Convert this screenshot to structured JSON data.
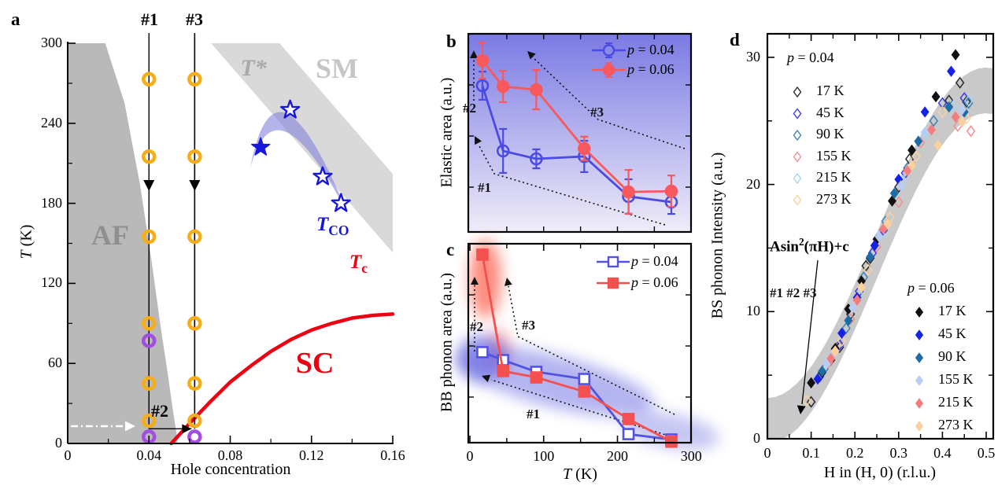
{
  "chart_data": {
    "a": {
      "type": "scatter",
      "panel_label": "a",
      "xlabel": "Hole concentration",
      "ylabel_var": "T",
      "ylabel_rest": " (K)",
      "xlim": [
        0,
        0.16
      ],
      "ylim": [
        0,
        300
      ],
      "x_ticks": [
        0,
        0.04,
        0.08,
        0.12,
        0.16
      ],
      "x_tick_labels": [
        "0",
        "0.04",
        "0.08",
        "0.12",
        "0.16"
      ],
      "x_minor": [
        0.02,
        0.06,
        0.1,
        0.14
      ],
      "y_ticks": [
        0,
        60,
        120,
        180,
        240,
        300
      ],
      "y_tick_labels": [
        "0",
        "60",
        "120",
        "180",
        "240",
        "300"
      ],
      "y_minor": [
        30,
        90,
        150,
        210,
        270
      ],
      "regions": {
        "af": "AF",
        "sm": "SM",
        "tstar": "T*",
        "sc": "SC"
      },
      "labels": {
        "tc_main": "T",
        "tc_sub": "c",
        "tco_main": "T",
        "tco_sub": "CO",
        "line1": "#1",
        "line2": "#2",
        "line3": "#3"
      },
      "colors": {
        "af": "#b9b9b9",
        "tstar_band": "#d9d9d9",
        "sm_text": "#c6c6c6",
        "af_text": "#8f8f8f",
        "tstar_text": "#a9a9a9",
        "red": "#ee0011",
        "blue": "#1616dd",
        "tco_band": "#8080dd",
        "yellow": "#f5ae19",
        "purple": "#a24ddf"
      },
      "sample_lines": {
        "line1_x": 0.04,
        "line3_x": 0.0625,
        "line2_T": 11
      },
      "yellow_circle_temps": [
        273,
        215,
        155,
        90,
        45,
        17
      ],
      "purple_circles": [
        [
          0.04,
          77
        ],
        [
          0.04,
          5
        ],
        [
          0.0625,
          5
        ]
      ],
      "stars_filled": [
        [
          0.095,
          222
        ]
      ],
      "stars_open": [
        [
          0.1095,
          250
        ],
        [
          0.1255,
          200
        ],
        [
          0.1345,
          180
        ]
      ],
      "tc_curve": [
        [
          0.051,
          0
        ],
        [
          0.06,
          15
        ],
        [
          0.07,
          31
        ],
        [
          0.08,
          46
        ],
        [
          0.09,
          58
        ],
        [
          0.1,
          69
        ],
        [
          0.11,
          78
        ],
        [
          0.12,
          85
        ],
        [
          0.13,
          90
        ],
        [
          0.14,
          94
        ],
        [
          0.15,
          96
        ],
        [
          0.16,
          97
        ]
      ],
      "af_boundary": [
        [
          0,
          300
        ],
        [
          0.0185,
          300
        ],
        [
          0.028,
          255
        ],
        [
          0.0355,
          195
        ],
        [
          0.041,
          140
        ],
        [
          0.0455,
          90
        ],
        [
          0.049,
          55
        ],
        [
          0.0515,
          28
        ],
        [
          0.0535,
          8
        ],
        [
          0.054,
          0
        ],
        [
          0,
          0
        ]
      ],
      "tstar_band": [
        [
          0.0706,
          300
        ],
        [
          0.1043,
          300
        ],
        [
          0.16,
          202
        ],
        [
          0.16,
          143
        ]
      ],
      "tco_band": {
        "tip1": [
          0.0898,
          206
        ],
        "tip2": [
          0.138,
          171.5
        ],
        "ctrl_upper": [
          0.1021,
          305.5
        ],
        "ctrl_lower": [
          0.1021,
          277.5
        ]
      }
    },
    "b": {
      "type": "line",
      "panel_label": "b",
      "ylabel": "Elastic area (a.u.)",
      "x": [
        17,
        45,
        90,
        155,
        215,
        273
      ],
      "xlim": [
        0,
        300
      ],
      "x_minor_ticks": [
        50,
        100,
        150,
        200,
        250
      ],
      "series": [
        {
          "name_var": "p",
          "name_rest": " = 0.04",
          "color": "#4a4ae4",
          "marker": "circle-open",
          "values": [
            0.738,
            0.409,
            0.369,
            0.381,
            0.179,
            0.151
          ],
          "errors": [
            0.071,
            0.111,
            0.048,
            0.079,
            0.087,
            0.06
          ]
        },
        {
          "name_var": "p",
          "name_rest": " = 0.06",
          "color": "#f8595c",
          "marker": "circle-filled",
          "values": [
            0.865,
            0.734,
            0.718,
            0.421,
            0.202,
            0.206
          ],
          "errors": [
            0.091,
            0.079,
            0.099,
            0.06,
            0.111,
            0.079
          ]
        }
      ],
      "annotations": {
        "a1": "#1",
        "a2": "#2",
        "a3": "#3"
      },
      "bg_gradient": [
        "#7a7ae4",
        "#efecf8"
      ]
    },
    "c": {
      "type": "line",
      "panel_label": "c",
      "ylabel": "BB phonon area (a.u.)",
      "xlabel_var": "T",
      "xlabel_rest": " (K)",
      "x": [
        17,
        45,
        90,
        155,
        215,
        273
      ],
      "xlim": [
        0,
        300
      ],
      "x_ticks": [
        0,
        100,
        200,
        300
      ],
      "x_tick_labels": [
        "0",
        "100",
        "200",
        "300"
      ],
      "x_minor": [
        50,
        150,
        250
      ],
      "series": [
        {
          "name_var": "p",
          "name_rest": " = 0.04",
          "color": "#5252e2",
          "marker": "square-open",
          "values": [
            0.455,
            0.415,
            0.356,
            0.32,
            0.043,
            0.016
          ]
        },
        {
          "name_var": "p",
          "name_rest": " = 0.06",
          "color": "#f4504f",
          "marker": "square-filled",
          "values": [
            0.945,
            0.36,
            0.328,
            0.257,
            0.119,
            0.005
          ]
        }
      ],
      "annotations": {
        "a1": "#1",
        "a2": "#2",
        "a3": "#3"
      }
    },
    "d": {
      "type": "scatter",
      "panel_label": "d",
      "ylabel": "BS phonon Intensity (a.u.)",
      "xlabel": "H in (H, 0) (r.l.u.)",
      "xlim": [
        0,
        0.5
      ],
      "ylim": [
        0,
        32
      ],
      "y_ticks": [
        0,
        10,
        20,
        30
      ],
      "y_tick_labels": [
        "0",
        "10",
        "20",
        "30"
      ],
      "y_minor": [
        5,
        15,
        25
      ],
      "x_ticks": [
        0,
        0.1,
        0.2,
        0.3,
        0.4,
        0.5
      ],
      "x_tick_labels": [
        "0",
        "0.1",
        "0.2",
        "0.3",
        "0.4",
        "0.5"
      ],
      "x_minor": [
        0.05,
        0.15,
        0.25,
        0.35,
        0.45
      ],
      "fit_label": {
        "pre": "Asin",
        "sup": "2",
        "post": "(πH)+c"
      },
      "arrow_label": "#1 #2 #3",
      "band": {
        "A": 26,
        "c": 1.4,
        "halfwidth": 1.8,
        "color": "#c9c9c9"
      },
      "groups": [
        {
          "title_var": "p",
          "title_rest": " = 0.04",
          "style": "open",
          "entries": [
            {
              "label": "17 K",
              "color": "#2a2a2a",
              "points": [
                [
                  0.1,
                  2.9
                ],
                [
                  0.145,
                  6.2
                ],
                [
                  0.155,
                  7.0
                ],
                [
                  0.165,
                  7.2
                ],
                [
                  0.19,
                  9.8
                ],
                [
                  0.225,
                  13.6
                ],
                [
                  0.235,
                  14.2
                ],
                [
                  0.3,
                  19.8
                ],
                [
                  0.325,
                  22.0
                ],
                [
                  0.415,
                  26.6
                ],
                [
                  0.44,
                  28.0
                ],
                [
                  0.455,
                  26.5
                ]
              ]
            },
            {
              "label": "45 K",
              "color": "#3c3ce0",
              "points": [
                [
                  0.12,
                  4.9
                ],
                [
                  0.165,
                  7.4
                ],
                [
                  0.21,
                  11.6
                ],
                [
                  0.24,
                  14.6
                ],
                [
                  0.265,
                  16.4
                ],
                [
                  0.315,
                  20.9
                ],
                [
                  0.4,
                  26.4
                ],
                [
                  0.45,
                  26.8
                ]
              ]
            },
            {
              "label": "90 K",
              "color": "#3d85b8",
              "points": [
                [
                  0.13,
                  5.5
                ],
                [
                  0.18,
                  8.7
                ],
                [
                  0.22,
                  12.7
                ],
                [
                  0.27,
                  17.1
                ],
                [
                  0.32,
                  21.3
                ],
                [
                  0.38,
                  25.0
                ],
                [
                  0.46,
                  26.4
                ]
              ]
            },
            {
              "label": "155 K",
              "color": "#f28e8e",
              "points": [
                [
                  0.14,
                  6.0
                ],
                [
                  0.19,
                  9.4
                ],
                [
                  0.25,
                  15.1
                ],
                [
                  0.3,
                  18.6
                ],
                [
                  0.35,
                  23.3
                ],
                [
                  0.435,
                  24.6
                ],
                [
                  0.465,
                  24.2
                ]
              ]
            },
            {
              "label": "215 K",
              "color": "#a6d4f0",
              "points": [
                [
                  0.15,
                  6.7
                ],
                [
                  0.21,
                  11.3
                ],
                [
                  0.26,
                  16.1
                ],
                [
                  0.31,
                  20.3
                ],
                [
                  0.36,
                  23.9
                ],
                [
                  0.425,
                  26.2
                ],
                [
                  0.46,
                  26.6
                ]
              ]
            },
            {
              "label": "273 K",
              "color": "#f8d2a2",
              "points": [
                [
                  0.09,
                  3.0
                ],
                [
                  0.17,
                  7.7
                ],
                [
                  0.23,
                  13.3
                ],
                [
                  0.28,
                  17.4
                ],
                [
                  0.34,
                  22.2
                ],
                [
                  0.4,
                  25.7
                ],
                [
                  0.455,
                  25.2
                ]
              ]
            }
          ]
        },
        {
          "title_var": "p",
          "title_rest": " = 0.06",
          "style": "filled",
          "entries": [
            {
              "label": "17 K",
              "color": "#111111",
              "points": [
                [
                  0.1,
                  4.4
                ],
                [
                  0.125,
                  5.2
                ],
                [
                  0.155,
                  7.1
                ],
                [
                  0.185,
                  10.2
                ],
                [
                  0.215,
                  12.4
                ],
                [
                  0.25,
                  15.7
                ],
                [
                  0.285,
                  18.7
                ],
                [
                  0.33,
                  22.7
                ],
                [
                  0.385,
                  26.9
                ],
                [
                  0.43,
                  30.2
                ]
              ]
            },
            {
              "label": "45 K",
              "color": "#1522e8",
              "points": [
                [
                  0.115,
                  4.7
                ],
                [
                  0.17,
                  8.3
                ],
                [
                  0.205,
                  11.1
                ],
                [
                  0.245,
                  15.2
                ],
                [
                  0.3,
                  20.4
                ],
                [
                  0.36,
                  25.7
                ],
                [
                  0.42,
                  28.9
                ]
              ]
            },
            {
              "label": "90 K",
              "color": "#1d6ca8",
              "points": [
                [
                  0.125,
                  5.3
                ],
                [
                  0.185,
                  9.3
                ],
                [
                  0.235,
                  14.3
                ],
                [
                  0.29,
                  19.3
                ],
                [
                  0.345,
                  23.4
                ],
                [
                  0.415,
                  26.1
                ],
                [
                  0.45,
                  25.7
                ]
              ]
            },
            {
              "label": "155 K",
              "color": "#b9cdf4",
              "points": [
                [
                  0.135,
                  5.9
                ],
                [
                  0.195,
                  10.3
                ],
                [
                  0.255,
                  15.9
                ],
                [
                  0.305,
                  19.9
                ],
                [
                  0.36,
                  24.1
                ],
                [
                  0.445,
                  25.9
                ]
              ]
            },
            {
              "label": "215 K",
              "color": "#f57d7d",
              "points": [
                [
                  0.145,
                  6.3
                ],
                [
                  0.205,
                  10.9
                ],
                [
                  0.265,
                  16.5
                ],
                [
                  0.32,
                  21.1
                ],
                [
                  0.375,
                  24.3
                ],
                [
                  0.43,
                  25.3
                ]
              ]
            },
            {
              "label": "273 K",
              "color": "#fad09e",
              "points": [
                [
                  0.155,
                  6.9
                ],
                [
                  0.215,
                  11.9
                ],
                [
                  0.275,
                  16.9
                ],
                [
                  0.33,
                  21.5
                ],
                [
                  0.39,
                  23.1
                ],
                [
                  0.445,
                  24.9
                ]
              ]
            }
          ]
        }
      ]
    }
  }
}
